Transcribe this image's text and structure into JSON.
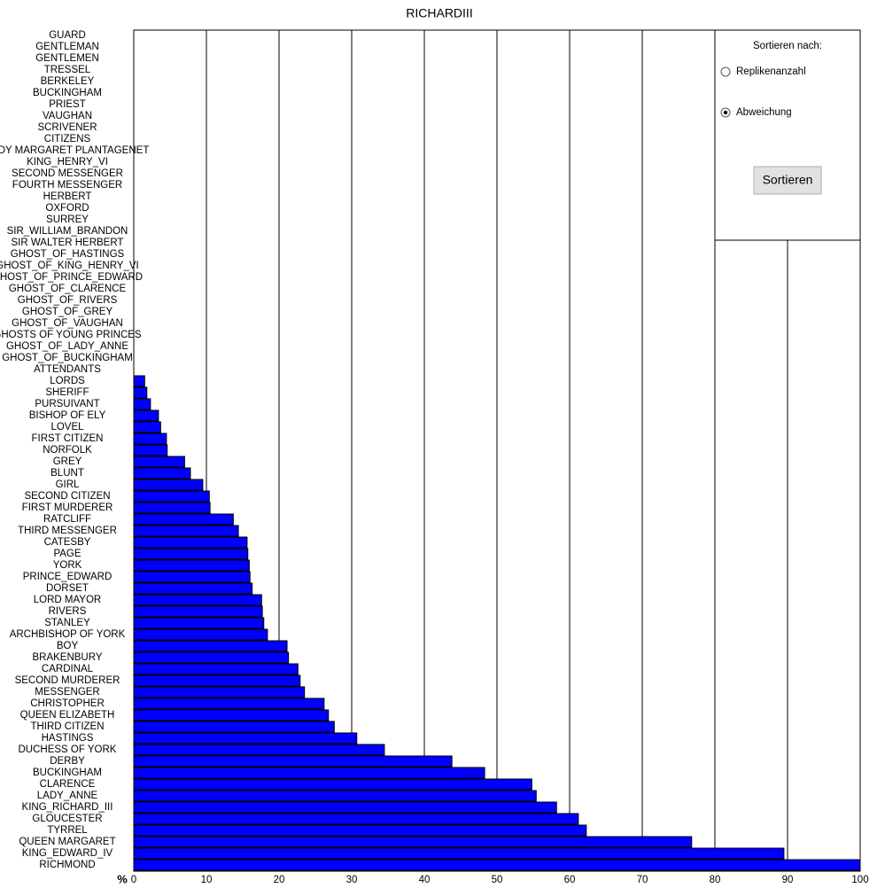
{
  "chart_data": {
    "type": "bar",
    "orientation": "horizontal",
    "title": "RICHARDIII",
    "x_label": "%",
    "categories": [
      "GUARD",
      "GENTLEMAN",
      "GENTLEMEN",
      "TRESSEL",
      "BERKELEY",
      "BUCKINGHAM",
      "PRIEST",
      "VAUGHAN",
      "SCRIVENER",
      "CITIZENS",
      "LADY MARGARET PLANTAGENET",
      "KING_HENRY_VI",
      "SECOND MESSENGER",
      "FOURTH MESSENGER",
      "HERBERT",
      "OXFORD",
      "SURREY",
      "SIR_WILLIAM_BRANDON",
      "SIR WALTER HERBERT",
      "GHOST_OF_HASTINGS",
      "GHOST_OF_KING_HENRY_VI",
      "GHOST_OF_PRINCE_EDWARD",
      "GHOST_OF_CLARENCE",
      "GHOST_OF_RIVERS",
      "GHOST_OF_GREY",
      "GHOST_OF_VAUGHAN",
      "GHOSTS OF YOUNG PRINCES",
      "GHOST_OF_LADY_ANNE",
      "GHOST_OF_BUCKINGHAM",
      "ATTENDANTS",
      "LORDS",
      "SHERIFF",
      "PURSUIVANT",
      "BISHOP OF ELY",
      "LOVEL",
      "FIRST CITIZEN",
      "NORFOLK",
      "GREY",
      "BLUNT",
      "GIRL",
      "SECOND CITIZEN",
      "FIRST MURDERER",
      "RATCLIFF",
      "THIRD MESSENGER",
      "CATESBY",
      "PAGE",
      "YORK",
      "PRINCE_EDWARD",
      "DORSET",
      "LORD MAYOR",
      "RIVERS",
      "STANLEY",
      "ARCHBISHOP OF YORK",
      "BOY",
      "BRAKENBURY",
      "CARDINAL",
      "SECOND MURDERER",
      "MESSENGER",
      "CHRISTOPHER",
      "QUEEN ELIZABETH",
      "THIRD CITIZEN",
      "HASTINGS",
      "DUCHESS OF YORK",
      "DERBY",
      "BUCKINGHAM",
      "CLARENCE",
      "LADY_ANNE",
      "KING_RICHARD_III",
      "GLOUCESTER",
      "TYRREL",
      "QUEEN MARGARET",
      "KING_EDWARD_IV",
      "RICHMOND"
    ],
    "values": [
      0,
      0,
      0,
      0,
      0,
      0,
      0,
      0,
      0,
      0,
      0,
      0,
      0,
      0,
      0,
      0,
      0,
      0,
      0,
      0,
      0,
      0,
      0,
      0,
      0,
      0,
      0,
      0,
      0,
      0,
      1.5,
      1.8,
      2.3,
      3.4,
      3.7,
      4.5,
      4.6,
      7.0,
      7.8,
      9.5,
      10.4,
      10.5,
      13.7,
      14.4,
      15.6,
      15.7,
      15.9,
      16.0,
      16.3,
      17.6,
      17.7,
      17.9,
      18.4,
      21.1,
      21.3,
      22.6,
      22.9,
      23.5,
      26.2,
      26.8,
      27.6,
      30.7,
      34.5,
      43.8,
      48.3,
      54.8,
      55.4,
      58.2,
      61.2,
      62.3,
      76.8,
      89.5,
      100
    ],
    "color": "#0000ff",
    "xlim": [
      0,
      100
    ],
    "xticks": [
      0,
      10,
      20,
      30,
      40,
      50,
      60,
      70,
      80,
      90,
      100
    ],
    "grid": true
  },
  "controls": {
    "sort_label": "Sortieren nach:",
    "options": [
      "Replikenanzahl",
      "Abweichung"
    ],
    "selected_option": 1,
    "button": "Sortieren"
  }
}
